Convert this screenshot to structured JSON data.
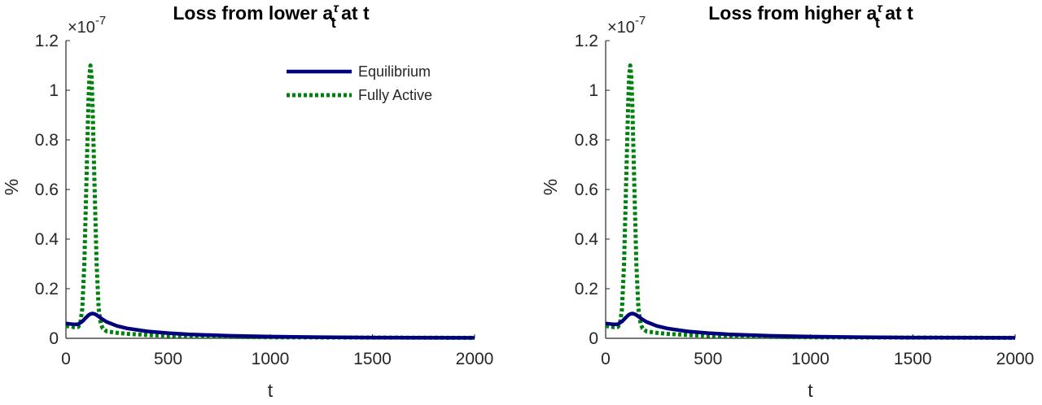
{
  "chart_data": [
    {
      "type": "line",
      "title": {
        "main": "Loss from lower ",
        "base": "a",
        "superscript": "τ",
        "subscript": "t",
        "suffix": " at t"
      },
      "xlabel": "t",
      "ylabel": "%",
      "y_exponent": {
        "prefix": "×10",
        "power": "-7"
      },
      "xlim": [
        0,
        2000
      ],
      "ylim": [
        0,
        1.2
      ],
      "xticks": [
        "0",
        "500",
        "1000",
        "1500",
        "2000"
      ],
      "yticks": [
        "0",
        "0.2",
        "0.4",
        "0.6",
        "0.8",
        "1",
        "1.2"
      ],
      "legend": {
        "placement": "top-right",
        "entries": [
          "Equilibrium",
          "Fully Active"
        ]
      },
      "series": [
        {
          "name": "Equilibrium",
          "color": "#00007F",
          "style": "solid",
          "x": [
            0,
            20,
            40,
            60,
            80,
            100,
            110,
            120,
            130,
            140,
            150,
            160,
            180,
            200,
            250,
            300,
            400,
            500,
            600,
            800,
            1000,
            1200,
            1500,
            2000
          ],
          "y": [
            0.06,
            0.058,
            0.056,
            0.057,
            0.068,
            0.085,
            0.093,
            0.098,
            0.1,
            0.098,
            0.094,
            0.088,
            0.076,
            0.066,
            0.05,
            0.04,
            0.028,
            0.021,
            0.016,
            0.01,
            0.007,
            0.005,
            0.003,
            0.002
          ]
        },
        {
          "name": "Fully Active",
          "color": "#00800D",
          "style": "dotted",
          "x": [
            0,
            40,
            60,
            70,
            80,
            90,
            100,
            110,
            115,
            120,
            125,
            130,
            140,
            150,
            160,
            170,
            180,
            200,
            250,
            300,
            400,
            500,
            600,
            800,
            1000,
            1500,
            2000
          ],
          "y": [
            0.05,
            0.045,
            0.046,
            0.06,
            0.12,
            0.3,
            0.62,
            0.95,
            1.06,
            1.1,
            1.06,
            0.95,
            0.62,
            0.3,
            0.12,
            0.06,
            0.04,
            0.028,
            0.022,
            0.018,
            0.013,
            0.01,
            0.008,
            0.006,
            0.004,
            0.003,
            0.002
          ]
        }
      ]
    },
    {
      "type": "line",
      "title": {
        "main": "Loss from higher ",
        "base": "a",
        "superscript": "τ",
        "subscript": "t",
        "suffix": " at t"
      },
      "xlabel": "t",
      "ylabel": "%",
      "y_exponent": {
        "prefix": "×10",
        "power": "-7"
      },
      "xlim": [
        0,
        2000
      ],
      "ylim": [
        0,
        1.2
      ],
      "xticks": [
        "0",
        "500",
        "1000",
        "1500",
        "2000"
      ],
      "yticks": [
        "0",
        "0.2",
        "0.4",
        "0.6",
        "0.8",
        "1",
        "1.2"
      ],
      "series": [
        {
          "name": "Equilibrium",
          "color": "#00007F",
          "style": "solid",
          "x": [
            0,
            20,
            40,
            60,
            80,
            100,
            110,
            120,
            130,
            140,
            150,
            160,
            180,
            200,
            250,
            300,
            400,
            500,
            600,
            800,
            1000,
            1200,
            1500,
            2000
          ],
          "y": [
            0.06,
            0.058,
            0.056,
            0.057,
            0.068,
            0.085,
            0.093,
            0.098,
            0.1,
            0.098,
            0.094,
            0.088,
            0.076,
            0.066,
            0.05,
            0.04,
            0.028,
            0.021,
            0.016,
            0.01,
            0.007,
            0.005,
            0.003,
            0.002
          ]
        },
        {
          "name": "Fully Active",
          "color": "#00800D",
          "style": "dotted",
          "x": [
            0,
            40,
            60,
            70,
            80,
            90,
            100,
            110,
            115,
            120,
            125,
            130,
            140,
            150,
            160,
            170,
            180,
            200,
            250,
            300,
            400,
            500,
            600,
            800,
            1000,
            1500,
            2000
          ],
          "y": [
            0.05,
            0.045,
            0.046,
            0.06,
            0.12,
            0.3,
            0.62,
            0.95,
            1.06,
            1.1,
            1.06,
            0.95,
            0.62,
            0.3,
            0.12,
            0.06,
            0.04,
            0.028,
            0.022,
            0.018,
            0.013,
            0.01,
            0.008,
            0.006,
            0.004,
            0.003,
            0.002
          ]
        }
      ]
    }
  ]
}
